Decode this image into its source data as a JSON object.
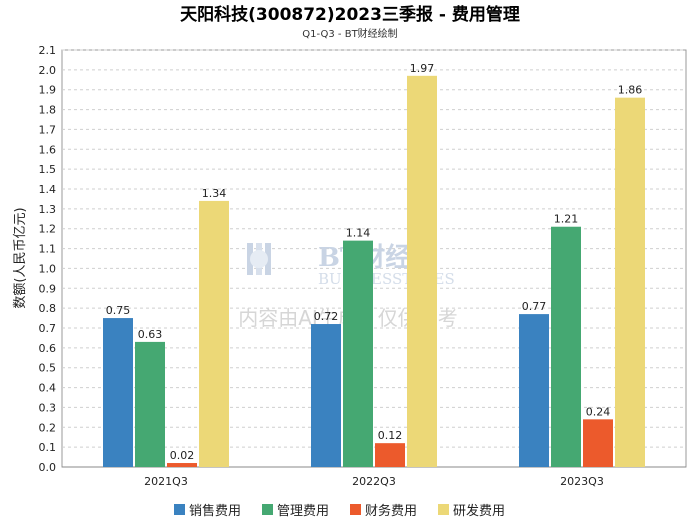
{
  "chart_data": {
    "type": "bar",
    "title": "天阳科技(300872)2023三季报 - 费用管理",
    "subtitle": "Q1-Q3 - BT财经绘制",
    "ylabel": "数额(人民币亿元)",
    "categories": [
      "2021Q3",
      "2022Q3",
      "2023Q3"
    ],
    "ylim": [
      0,
      2.1
    ],
    "ytick_step": 0.1,
    "grid": true,
    "legend_position": "bottom",
    "series": [
      {
        "name": "销售费用",
        "color": "#3a82c0",
        "values": [
          0.75,
          0.72,
          0.77
        ]
      },
      {
        "name": "管理费用",
        "color": "#45a872",
        "values": [
          0.63,
          1.14,
          1.21
        ]
      },
      {
        "name": "财务费用",
        "color": "#ec5a2c",
        "values": [
          0.02,
          0.12,
          0.24
        ]
      },
      {
        "name": "研发费用",
        "color": "#ecd877",
        "values": [
          1.34,
          1.97,
          1.86
        ]
      }
    ]
  },
  "watermark": {
    "brand": "BT财经",
    "brand_en": "BUSINESSTIMES",
    "note": "内容由AI生成，仅供参考"
  }
}
